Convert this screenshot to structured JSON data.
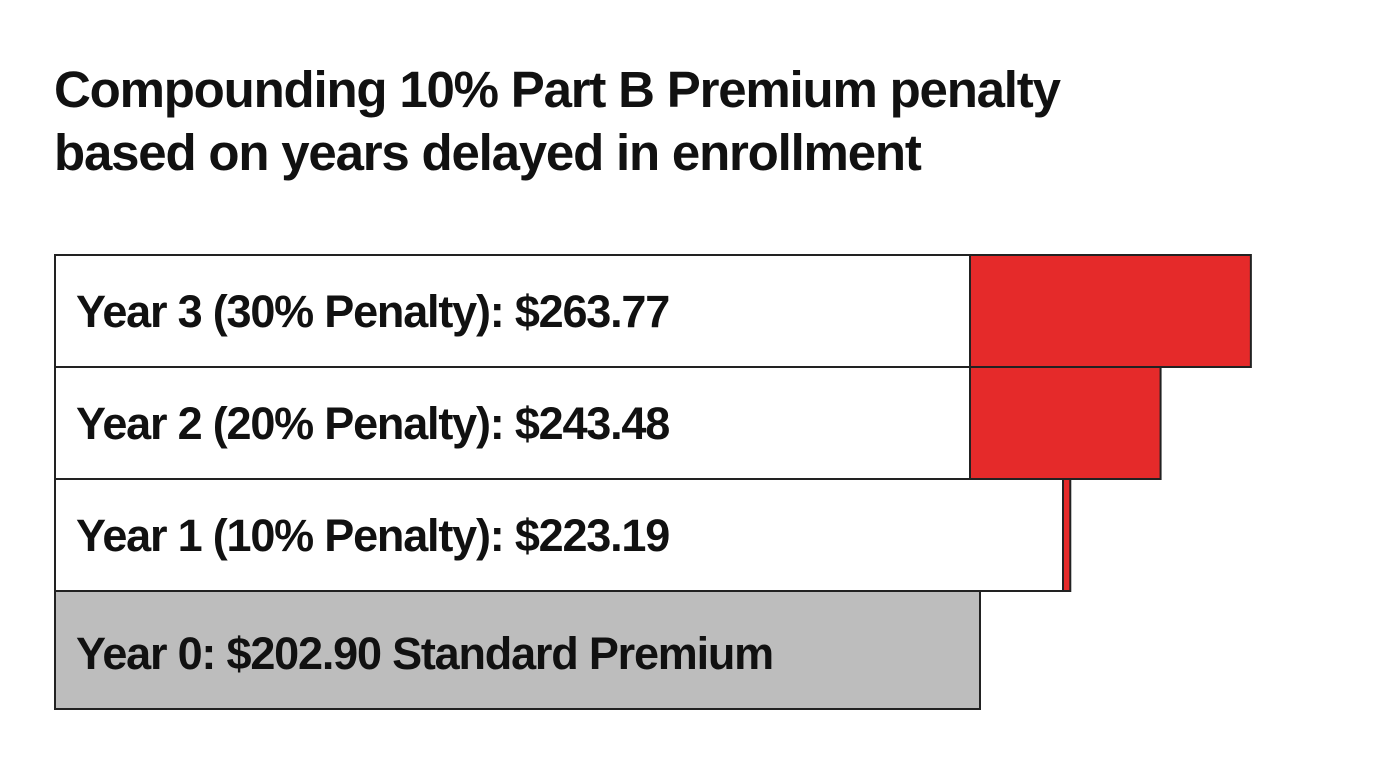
{
  "title_lines": [
    "Compounding 10% Part B Premium penalty",
    "based on years delayed in enrollment"
  ],
  "colors": {
    "penalty": "#e52a2a",
    "standard": "#bdbdbd",
    "row_background": "#ffffff",
    "border": "#222222",
    "text": "#111111"
  },
  "chart_data": {
    "type": "bar",
    "orientation": "horizontal",
    "title": "Compounding 10% Part B Premium penalty based on years delayed in enrollment",
    "categories": [
      "Year 3",
      "Year 2",
      "Year 1",
      "Year 0"
    ],
    "labels": [
      "Year 3 (30% Penalty): $263.77",
      "Year 2 (20% Penalty): $243.48",
      "Year 1 (10% Penalty): $223.19",
      "Year 0: $202.90 Standard Premium"
    ],
    "values": [
      263.77,
      243.48,
      223.19,
      202.9
    ],
    "penalty_percent": [
      30,
      20,
      10,
      0
    ],
    "base_value": 202.9,
    "xlabel": "",
    "ylabel": "",
    "grid": false,
    "legend": "none"
  }
}
